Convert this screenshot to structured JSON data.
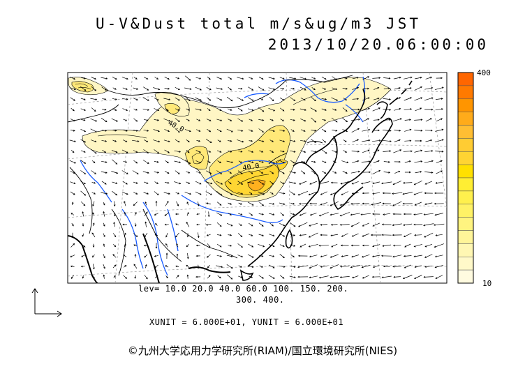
{
  "title": {
    "line1": "U-V&Dust total m/s&ug/m3 JST",
    "line2": "2013/10/20.06:00:00"
  },
  "colorbar": {
    "max_label": "400",
    "min_label": "10",
    "colors": [
      "#ff6600",
      "#ff7a00",
      "#ff9500",
      "#ffab1a",
      "#ffbe33",
      "#ffcc33",
      "#ffd433",
      "#ffe000",
      "#ffee33",
      "#fff04d",
      "#fff266",
      "#fff480",
      "#fff599",
      "#fff7b3",
      "#fff9c9",
      "#fffbe0"
    ]
  },
  "levels": {
    "line1": "lev= 10.0 20.0 40.0 60.0 100. 150. 200.",
    "line2": "300. 400."
  },
  "contour_labels": [
    "40.0",
    "40.0"
  ],
  "units_line": "XUNIT = 6.000E+01, YUNIT = 6.000E+01",
  "credit": "©九州大学応用力学研究所(RIAM)/国立環境研究所(NIES)",
  "colors": {
    "coast": "#000000",
    "river": "#1a5cff",
    "dust_light": "#fff6c4",
    "dust_mid": "#ffe878",
    "dust_high": "#ffd633",
    "dust_peak": "#ffb01f"
  }
}
